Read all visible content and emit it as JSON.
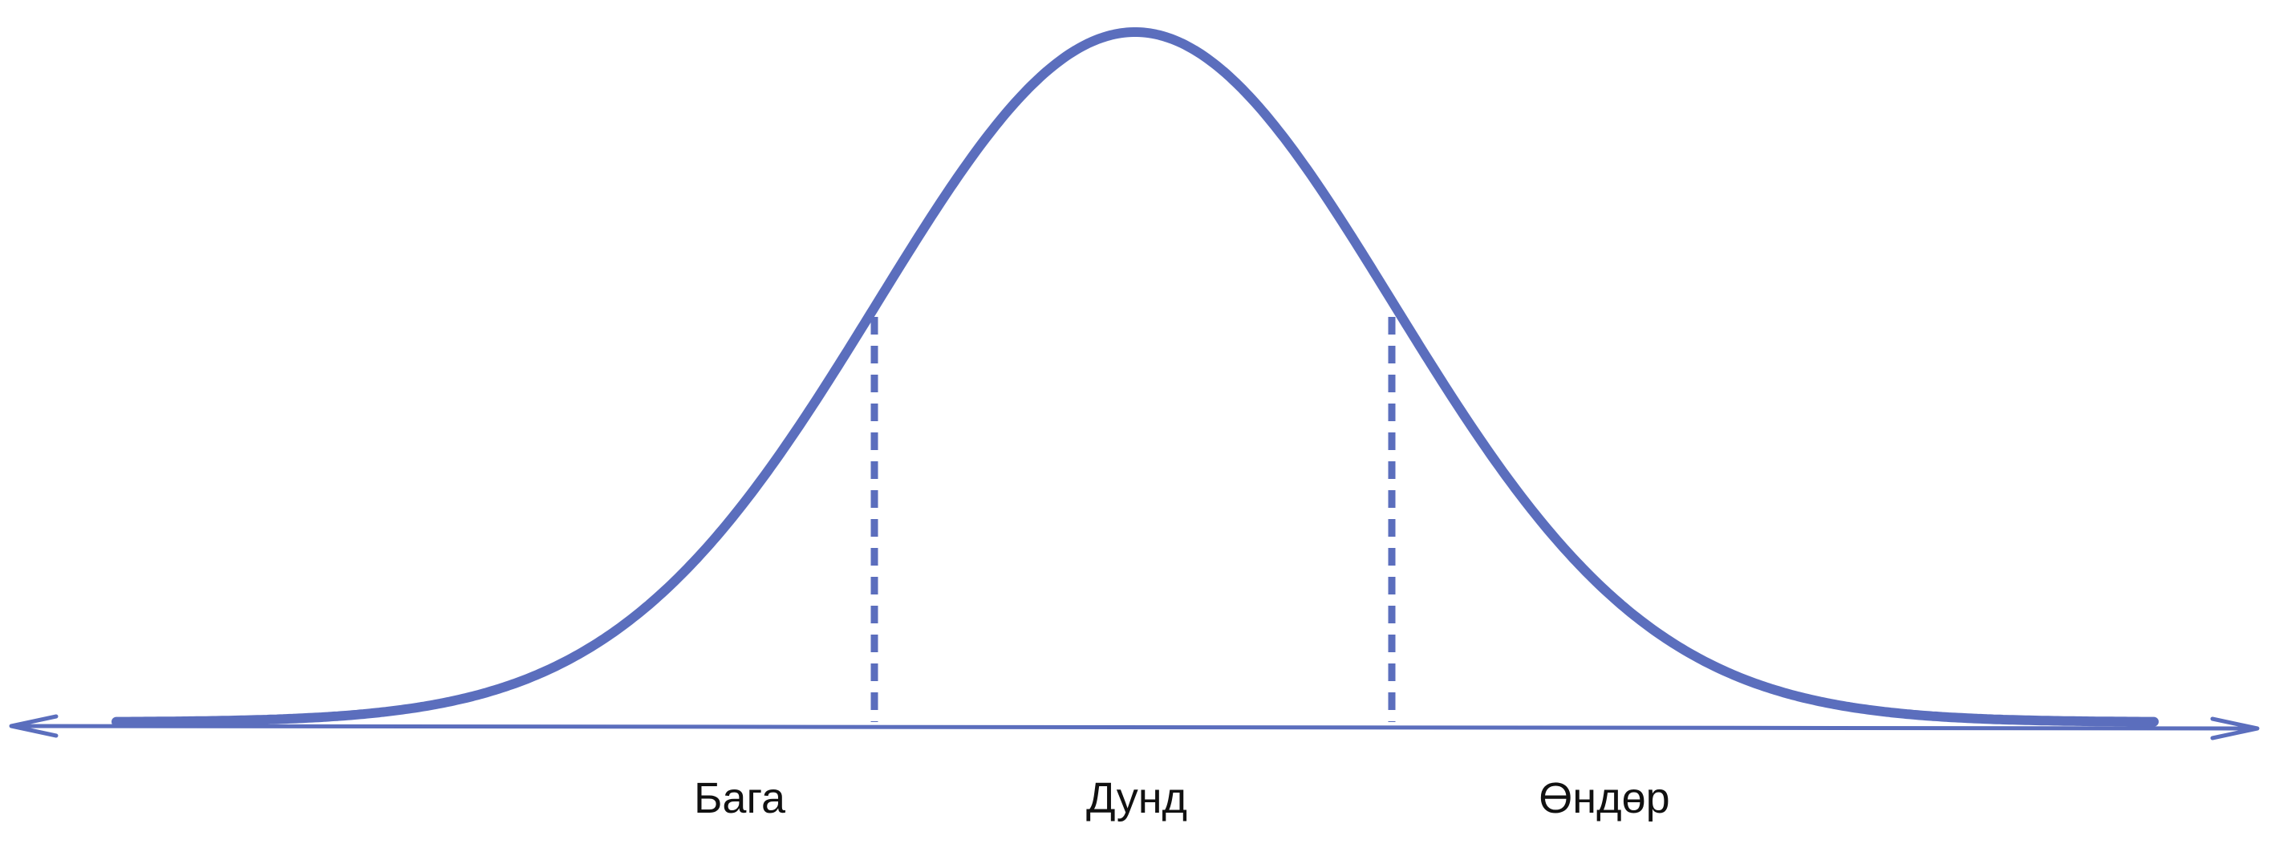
{
  "diagram": {
    "type": "normal-distribution",
    "colors": {
      "curve": "#5b6ebd",
      "axis": "#5b6ebd",
      "label": "#111111",
      "background": "#ffffff"
    },
    "regions": [
      {
        "label": "Бага"
      },
      {
        "label": "Дунд"
      },
      {
        "label": "Өндөр"
      }
    ]
  }
}
